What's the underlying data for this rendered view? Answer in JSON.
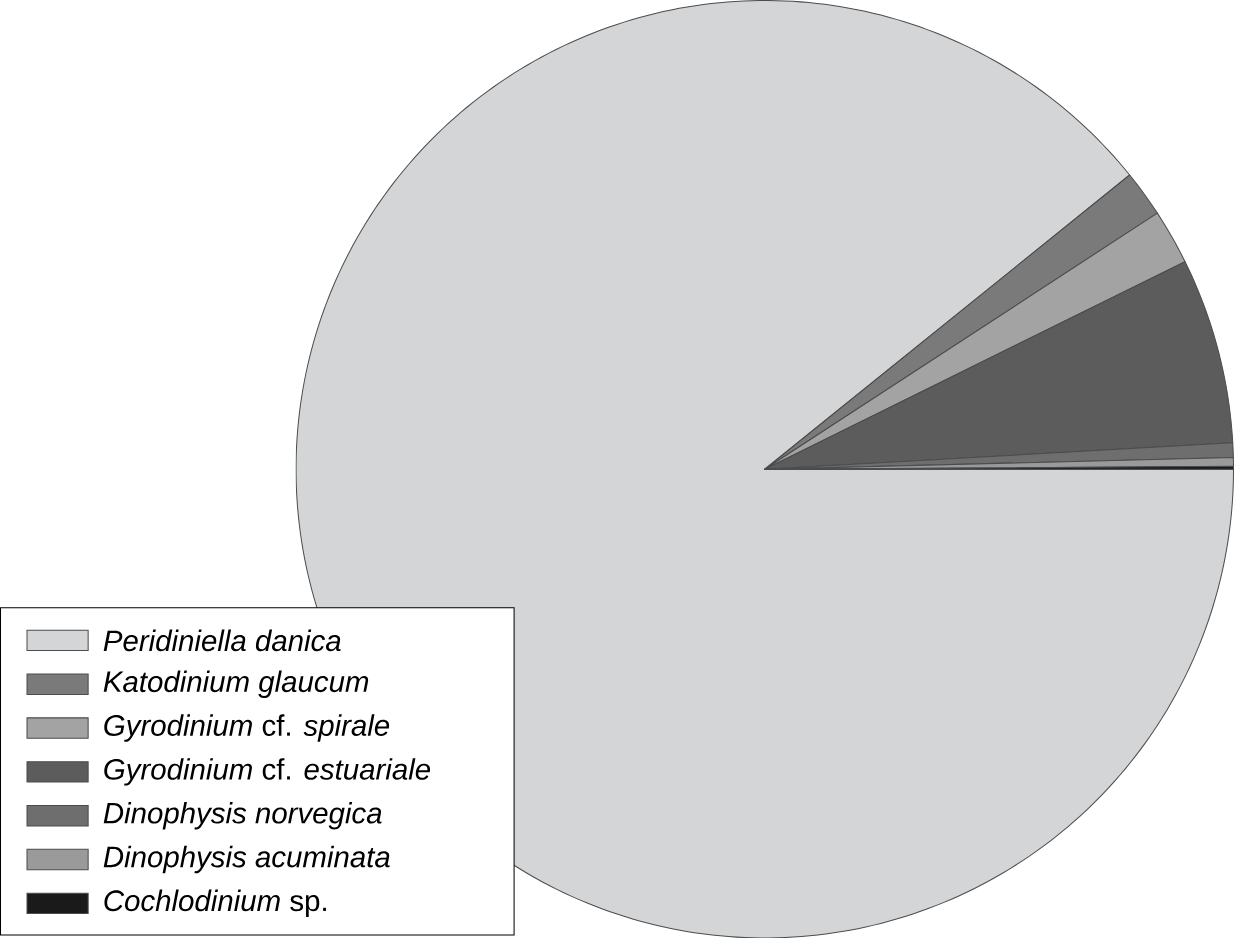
{
  "chart_data": {
    "type": "pie",
    "categories": [
      "*Peridiniella danica*",
      "*Katodinium glaucum*",
      "*Gyrodinium* cf. *spirale*",
      "*Gyrodinium* cf. *estuariale*",
      "*Dinophysis norvegica*",
      "*Dinophysis acuminata*",
      "*Cochlodinium* sp."
    ],
    "values": [
      89.2,
      1.6,
      1.9,
      6.4,
      0.5,
      0.3,
      0.1
    ],
    "colors": [
      "#d4d5d6",
      "#7a7a7a",
      "#a3a3a3",
      "#5c5c5c",
      "#6e6e6e",
      "#9a9a9a",
      "#1a1a1a"
    ],
    "legend": "bottom left"
  }
}
